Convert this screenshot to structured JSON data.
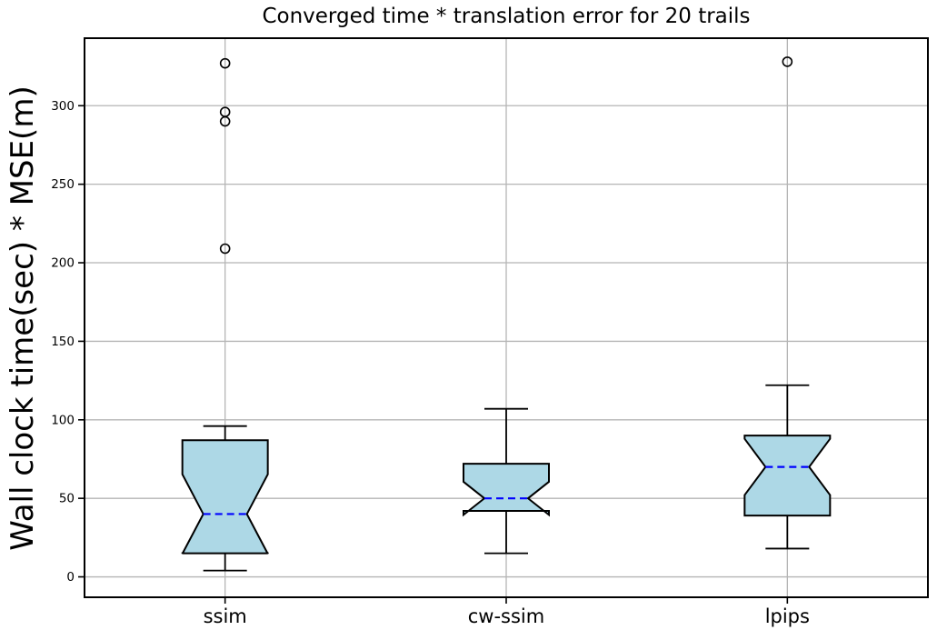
{
  "chart_data": {
    "type": "boxplot",
    "title": "Converged time * translation error for 20 trails",
    "ylabel": "Wall clock time(sec) * MSE(m)",
    "xlabel": "",
    "categories": [
      "ssim",
      "cw-ssim",
      "lpips"
    ],
    "n_trials": 20,
    "notched": true,
    "grid": true,
    "legend": "none",
    "ylim": [
      -13,
      343
    ],
    "yticks": [
      0,
      50,
      100,
      150,
      200,
      250,
      300
    ],
    "series": [
      {
        "label": "ssim",
        "whislo": 4,
        "q1": 15,
        "med": 40,
        "q3": 87,
        "whishi": 96,
        "fliers": [
          209,
          290,
          296,
          327
        ]
      },
      {
        "label": "cw-ssim",
        "whislo": 15,
        "q1": 42,
        "med": 50,
        "q3": 72,
        "whishi": 107,
        "fliers": []
      },
      {
        "label": "lpips",
        "whislo": 18,
        "q1": 39,
        "med": 70,
        "q3": 90,
        "whishi": 122,
        "fliers": [
          328
        ]
      }
    ],
    "colors": {
      "box_fill": "#ADD8E6",
      "box_edge": "#000000",
      "median": "#0000FF",
      "whisker": "#000000",
      "flier_edge": "#000000",
      "grid": "#b5b5b5",
      "spine": "#000000",
      "tick_label": "#000000"
    }
  }
}
